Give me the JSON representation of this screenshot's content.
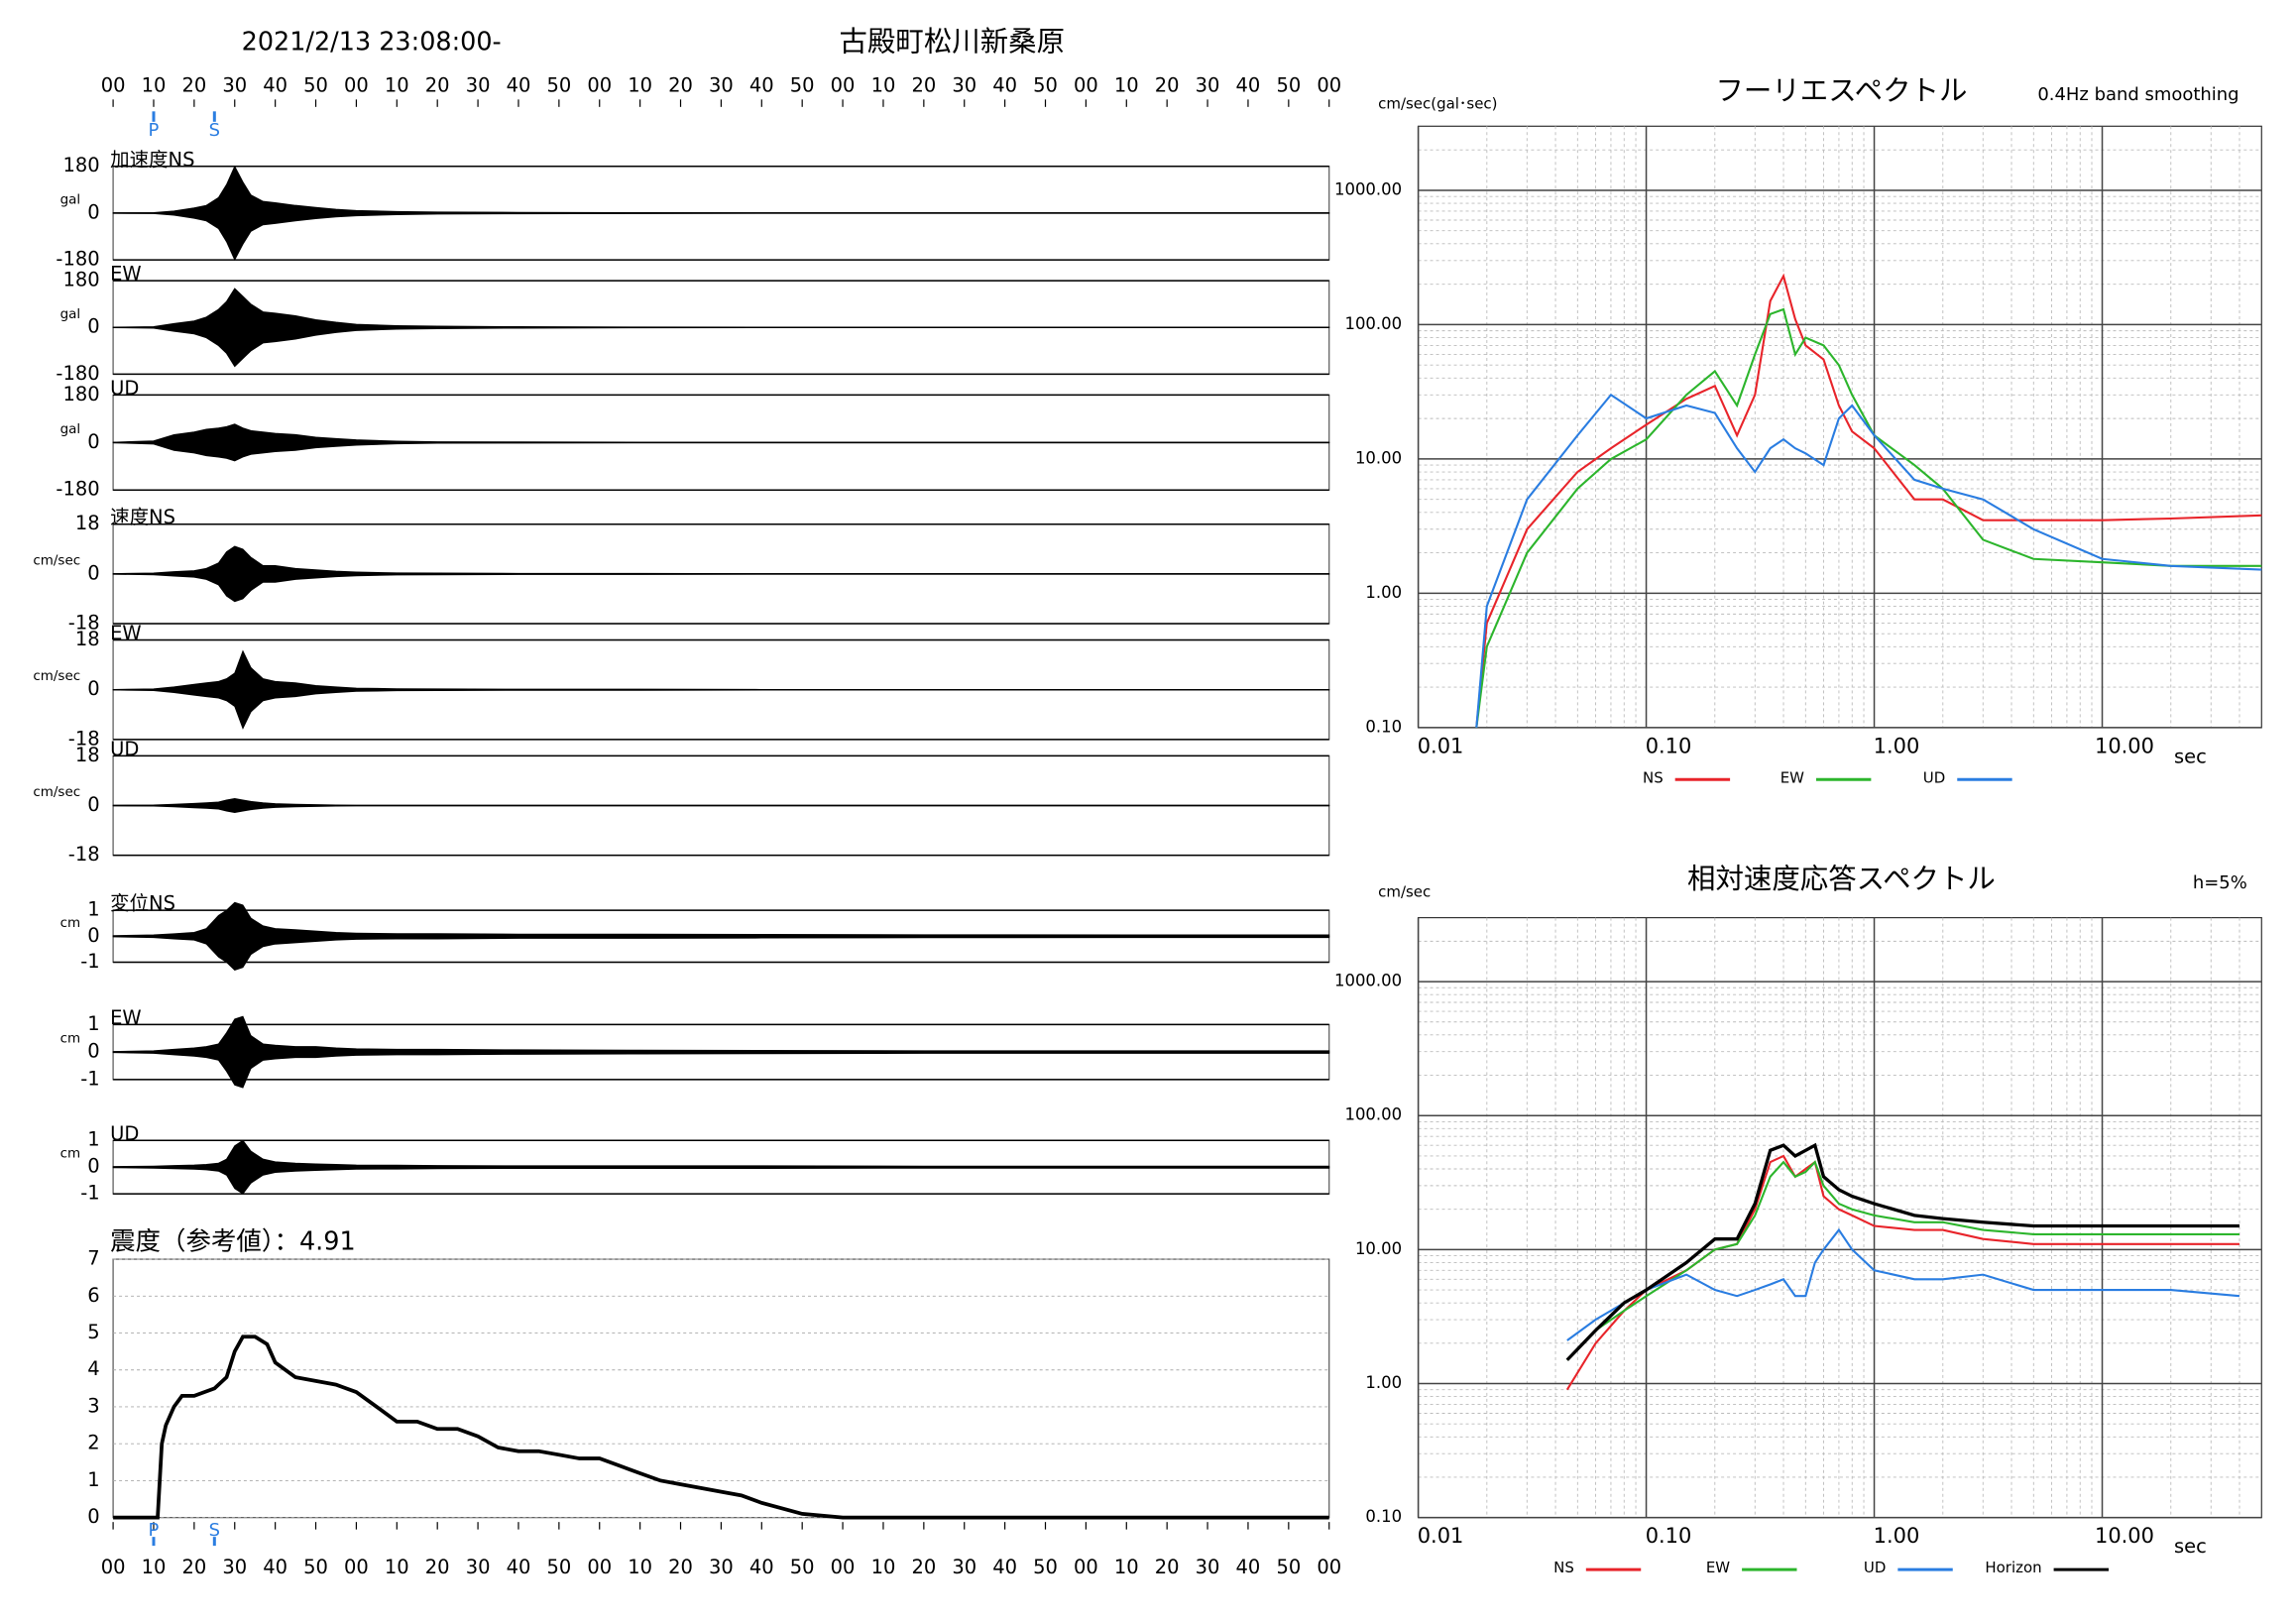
{
  "header": {
    "datetime": "2021/2/13 23:08:00-",
    "station": "古殿町松川新桑原"
  },
  "time_axis": {
    "xlim": [
      0,
      300
    ],
    "xticks": [
      {
        "value": 0,
        "label": "00"
      },
      10,
      20,
      30,
      40,
      50,
      {
        "value": 60,
        "label": "00"
      },
      {
        "value": 70,
        "label": "10"
      },
      {
        "value": 80,
        "label": "20"
      },
      {
        "value": 90,
        "label": "30"
      },
      {
        "value": 100,
        "label": "40"
      },
      {
        "value": 110,
        "label": "50"
      },
      {
        "value": 120,
        "label": "00"
      },
      {
        "value": 130,
        "label": "10"
      },
      {
        "value": 140,
        "label": "20"
      },
      {
        "value": 150,
        "label": "30"
      },
      {
        "value": 160,
        "label": "40"
      },
      {
        "value": 170,
        "label": "50"
      },
      {
        "value": 180,
        "label": "00"
      },
      {
        "value": 190,
        "label": "10"
      },
      {
        "value": 200,
        "label": "20"
      },
      {
        "value": 210,
        "label": "30"
      },
      {
        "value": 220,
        "label": "40"
      },
      {
        "value": 230,
        "label": "50"
      },
      {
        "value": 240,
        "label": "00"
      },
      {
        "value": 250,
        "label": "10"
      },
      {
        "value": 260,
        "label": "20"
      },
      {
        "value": 270,
        "label": "30"
      },
      {
        "value": 280,
        "label": "40"
      },
      {
        "value": 290,
        "label": "50"
      },
      {
        "value": 300,
        "label": "00"
      }
    ],
    "markers": [
      {
        "label": "P",
        "x": 10
      },
      {
        "label": "S",
        "x": 25
      }
    ],
    "marker_color": "#2a7de1"
  },
  "chart_data": [
    {
      "type": "waveform",
      "label": "加速度NS",
      "unit": "gal",
      "ylim": [
        -180,
        180
      ],
      "yticks": [
        -180,
        0,
        180
      ],
      "color": "#000000",
      "x": [
        0,
        10,
        15,
        20,
        23,
        26,
        28,
        30,
        32,
        34,
        37,
        40,
        45,
        50,
        55,
        60,
        70,
        80,
        100,
        130,
        160,
        200,
        300
      ],
      "values": [
        1,
        2,
        8,
        20,
        30,
        60,
        110,
        180,
        120,
        70,
        45,
        40,
        30,
        22,
        15,
        10,
        6,
        4,
        3,
        2,
        1,
        1,
        1
      ]
    },
    {
      "type": "waveform",
      "label": "EW",
      "unit": "gal",
      "ylim": [
        -180,
        180
      ],
      "yticks": [
        -180,
        0,
        180
      ],
      "color": "#000000",
      "x": [
        0,
        10,
        15,
        20,
        23,
        26,
        28,
        30,
        32,
        34,
        37,
        40,
        45,
        50,
        55,
        60,
        70,
        80,
        100,
        130,
        160,
        200,
        300
      ],
      "values": [
        1,
        3,
        15,
        25,
        40,
        70,
        100,
        150,
        120,
        90,
        60,
        55,
        45,
        30,
        20,
        12,
        7,
        5,
        3,
        2,
        1,
        1,
        1
      ]
    },
    {
      "type": "waveform",
      "label": "UD",
      "unit": "gal",
      "ylim": [
        -180,
        180
      ],
      "yticks": [
        -180,
        0,
        180
      ],
      "color": "#000000",
      "x": [
        0,
        10,
        15,
        20,
        23,
        26,
        28,
        30,
        32,
        34,
        37,
        40,
        45,
        50,
        55,
        60,
        70,
        80,
        100,
        130,
        160,
        200,
        300
      ],
      "values": [
        1,
        6,
        30,
        40,
        50,
        55,
        60,
        70,
        55,
        45,
        40,
        35,
        30,
        20,
        15,
        10,
        5,
        3,
        2,
        1,
        1,
        1,
        1
      ]
    },
    {
      "type": "waveform",
      "label": "速度NS",
      "unit": "cm/sec",
      "ylim": [
        -18,
        18
      ],
      "yticks": [
        -18,
        0,
        18
      ],
      "color": "#000000",
      "x": [
        0,
        10,
        15,
        20,
        23,
        26,
        28,
        30,
        32,
        34,
        37,
        40,
        45,
        50,
        55,
        60,
        70,
        80,
        100,
        130,
        160,
        200,
        300
      ],
      "values": [
        0.1,
        0.3,
        0.8,
        1.2,
        2,
        4,
        8,
        10,
        9,
        6,
        3,
        3,
        2,
        1.5,
        1,
        0.7,
        0.4,
        0.3,
        0.2,
        0.2,
        0.1,
        0.1,
        0.1
      ]
    },
    {
      "type": "waveform",
      "label": "EW",
      "unit": "cm/sec",
      "ylim": [
        -18,
        18
      ],
      "yticks": [
        -18,
        0,
        18
      ],
      "color": "#000000",
      "x": [
        0,
        10,
        15,
        20,
        23,
        26,
        28,
        30,
        32,
        34,
        37,
        40,
        45,
        50,
        55,
        60,
        70,
        80,
        100,
        130,
        160,
        200,
        300
      ],
      "values": [
        0.1,
        0.3,
        1,
        2,
        2.5,
        3,
        4,
        6,
        14,
        8,
        4,
        3,
        2.5,
        1.5,
        1,
        0.6,
        0.4,
        0.3,
        0.2,
        0.2,
        0.1,
        0.1,
        0.1
      ]
    },
    {
      "type": "waveform",
      "label": "UD",
      "unit": "cm/sec",
      "ylim": [
        -18,
        18
      ],
      "yticks": [
        -18,
        0,
        18
      ],
      "color": "#000000",
      "x": [
        0,
        10,
        15,
        20,
        23,
        26,
        28,
        30,
        32,
        34,
        37,
        40,
        45,
        50,
        55,
        60,
        70,
        80,
        100,
        130,
        160,
        200,
        300
      ],
      "values": [
        0.1,
        0.2,
        0.5,
        0.8,
        1,
        1.3,
        2,
        2.5,
        2,
        1.5,
        1,
        0.7,
        0.5,
        0.3,
        0.2,
        0.1,
        0.1,
        0.1,
        0.1,
        0.1,
        0.1,
        0.1,
        0.1
      ]
    },
    {
      "type": "waveform",
      "label": "変位NS",
      "unit": "cm",
      "ylim": [
        -1,
        1
      ],
      "yticks": [
        -1,
        0,
        1
      ],
      "color": "#000000",
      "x": [
        0,
        10,
        15,
        20,
        23,
        26,
        28,
        30,
        32,
        34,
        37,
        40,
        45,
        50,
        55,
        60,
        70,
        80,
        100,
        130,
        160,
        200,
        300
      ],
      "values": [
        0.02,
        0.05,
        0.1,
        0.15,
        0.3,
        0.8,
        1.0,
        1.3,
        1.2,
        0.7,
        0.4,
        0.3,
        0.25,
        0.2,
        0.15,
        0.12,
        0.1,
        0.1,
        0.08,
        0.08,
        0.07,
        0.06,
        0.05
      ]
    },
    {
      "type": "waveform",
      "label": "EW",
      "unit": "cm",
      "ylim": [
        -1,
        1
      ],
      "yticks": [
        -1,
        0,
        1
      ],
      "color": "#000000",
      "x": [
        0,
        10,
        15,
        20,
        23,
        26,
        28,
        30,
        32,
        34,
        37,
        40,
        45,
        50,
        55,
        60,
        70,
        80,
        100,
        130,
        160,
        200,
        300
      ],
      "values": [
        0.02,
        0.05,
        0.1,
        0.15,
        0.2,
        0.3,
        0.7,
        1.2,
        1.3,
        0.6,
        0.3,
        0.25,
        0.2,
        0.2,
        0.15,
        0.12,
        0.1,
        0.1,
        0.08,
        0.07,
        0.06,
        0.05,
        0.05
      ]
    },
    {
      "type": "waveform",
      "label": "UD",
      "unit": "cm",
      "ylim": [
        -1,
        1
      ],
      "yticks": [
        -1,
        0,
        1
      ],
      "color": "#000000",
      "x": [
        0,
        10,
        15,
        20,
        23,
        26,
        28,
        30,
        32,
        34,
        37,
        40,
        45,
        50,
        55,
        60,
        70,
        80,
        100,
        130,
        160,
        200,
        300
      ],
      "values": [
        0.02,
        0.04,
        0.06,
        0.08,
        0.1,
        0.15,
        0.3,
        0.8,
        1.0,
        0.6,
        0.3,
        0.2,
        0.15,
        0.12,
        0.1,
        0.08,
        0.07,
        0.06,
        0.05,
        0.05,
        0.05,
        0.04,
        0.04
      ]
    },
    {
      "type": "intensity",
      "title": "震度（参考値）：4.91",
      "ylim": [
        0,
        7
      ],
      "yticks": [
        0,
        1,
        2,
        3,
        4,
        5,
        6,
        7
      ],
      "color": "#000000",
      "grid": true,
      "x": [
        0,
        11,
        12,
        13,
        15,
        17,
        20,
        25,
        28,
        30,
        32,
        35,
        38,
        40,
        45,
        50,
        55,
        60,
        65,
        70,
        75,
        80,
        85,
        90,
        95,
        100,
        105,
        110,
        115,
        120,
        125,
        130,
        135,
        140,
        145,
        150,
        155,
        160,
        170,
        180,
        190,
        200,
        210,
        300
      ],
      "values": [
        0,
        0,
        2.0,
        2.5,
        3.0,
        3.3,
        3.3,
        3.5,
        3.8,
        4.5,
        4.9,
        4.9,
        4.7,
        4.2,
        3.8,
        3.7,
        3.6,
        3.4,
        3.0,
        2.6,
        2.6,
        2.4,
        2.4,
        2.2,
        1.9,
        1.8,
        1.8,
        1.7,
        1.6,
        1.6,
        1.4,
        1.2,
        1.0,
        0.9,
        0.8,
        0.7,
        0.6,
        0.4,
        0.1,
        0,
        0,
        0,
        0,
        0
      ]
    },
    {
      "type": "loglog",
      "title": "フーリエスペクトル",
      "subtitle": "0.4Hz band smoothing",
      "y_label": "cm/sec(gal･sec)",
      "x_label": "sec",
      "log_x": true,
      "log_y": true,
      "grid": true,
      "xlim": [
        0.01,
        50
      ],
      "ylim": [
        0.1,
        3000
      ],
      "xticks": [
        0.01,
        {
          "value": 0.1,
          "label": "0.10"
        },
        {
          "value": 1,
          "label": "1.00"
        },
        {
          "value": 10,
          "label": "10.00"
        }
      ],
      "yticks": [
        {
          "value": 0.1,
          "label": "0.10"
        },
        {
          "value": 1,
          "label": "1.00"
        },
        {
          "value": 10,
          "label": "10.00"
        },
        {
          "value": 100,
          "label": "100.00"
        },
        {
          "value": 1000,
          "label": "1000.00"
        }
      ],
      "x": [
        0.018,
        0.02,
        0.03,
        0.05,
        0.07,
        0.1,
        0.15,
        0.2,
        0.25,
        0.3,
        0.35,
        0.4,
        0.45,
        0.5,
        0.6,
        0.7,
        0.8,
        1,
        1.5,
        2,
        3,
        5,
        10,
        20,
        50
      ],
      "series": [
        {
          "name": "NS",
          "color": "#e8242a",
          "values": [
            0.1,
            0.6,
            3,
            8,
            12,
            18,
            28,
            35,
            15,
            30,
            150,
            230,
            110,
            70,
            55,
            25,
            16,
            12,
            5,
            5,
            3.5,
            3.5,
            3.5,
            3.6,
            3.8
          ]
        },
        {
          "name": "EW",
          "color": "#2cb52c",
          "values": [
            0.1,
            0.4,
            2,
            6,
            10,
            14,
            30,
            45,
            25,
            60,
            120,
            130,
            60,
            80,
            70,
            50,
            30,
            15,
            9,
            6,
            2.5,
            1.8,
            1.7,
            1.6,
            1.6
          ]
        },
        {
          "name": "UD",
          "color": "#2a7de1",
          "values": [
            0.1,
            0.8,
            5,
            15,
            30,
            20,
            25,
            22,
            12,
            8,
            12,
            14,
            12,
            11,
            9,
            20,
            25,
            15,
            7,
            6,
            5,
            3,
            1.8,
            1.6,
            1.5
          ]
        }
      ]
    },
    {
      "type": "loglog",
      "title": "相対速度応答スペクトル",
      "subtitle": "h=5%",
      "y_label": "cm/sec",
      "x_label": "sec",
      "log_x": true,
      "log_y": true,
      "grid": true,
      "xlim": [
        0.01,
        50
      ],
      "ylim": [
        0.1,
        3000
      ],
      "xticks": [
        0.01,
        {
          "value": 0.1,
          "label": "0.10"
        },
        {
          "value": 1,
          "label": "1.00"
        },
        {
          "value": 10,
          "label": "10.00"
        }
      ],
      "yticks": [
        {
          "value": 0.1,
          "label": "0.10"
        },
        {
          "value": 1,
          "label": "1.00"
        },
        {
          "value": 10,
          "label": "10.00"
        },
        {
          "value": 100,
          "label": "100.00"
        },
        {
          "value": 1000,
          "label": "1000.00"
        }
      ],
      "x": [
        0.045,
        0.06,
        0.08,
        0.1,
        0.15,
        0.2,
        0.25,
        0.3,
        0.35,
        0.4,
        0.45,
        0.5,
        0.55,
        0.6,
        0.7,
        0.8,
        1,
        1.5,
        2,
        3,
        5,
        10,
        20,
        40
      ],
      "series": [
        {
          "name": "NS",
          "color": "#e8242a",
          "values": [
            0.9,
            2,
            3.5,
            5,
            7,
            10,
            11,
            20,
            45,
            50,
            35,
            40,
            45,
            25,
            20,
            18,
            15,
            14,
            14,
            12,
            11,
            11,
            11,
            11
          ]
        },
        {
          "name": "EW",
          "color": "#2cb52c",
          "values": [
            1.5,
            2.5,
            3.5,
            4.5,
            7,
            10,
            11,
            18,
            35,
            45,
            35,
            38,
            45,
            30,
            22,
            20,
            18,
            16,
            16,
            14,
            13,
            13,
            13,
            13
          ]
        },
        {
          "name": "UD",
          "color": "#2a7de1",
          "values": [
            2.1,
            3,
            4,
            5,
            6.5,
            5,
            4.5,
            5,
            5.5,
            6,
            4.5,
            4.5,
            8,
            10,
            14,
            10,
            7,
            6,
            6,
            6.5,
            5,
            5,
            5,
            4.5
          ]
        },
        {
          "name": "Horizon",
          "color": "#000000",
          "values": [
            1.5,
            2.5,
            4,
            5,
            8,
            12,
            12,
            22,
            55,
            60,
            50,
            55,
            60,
            35,
            28,
            25,
            22,
            18,
            17,
            16,
            15,
            15,
            15,
            15
          ]
        }
      ]
    }
  ]
}
